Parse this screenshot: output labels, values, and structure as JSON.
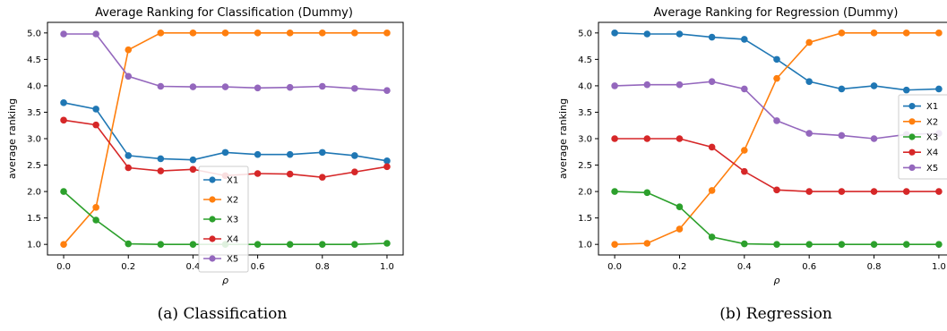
{
  "chart_data": [
    {
      "type": "line",
      "title": "Average Ranking for Classification (Dummy)",
      "xlabel": "ρ",
      "ylabel": "average ranking",
      "caption": "(a) Classification",
      "x": [
        0.0,
        0.1,
        0.2,
        0.3,
        0.4,
        0.5,
        0.6,
        0.7,
        0.8,
        0.9,
        1.0
      ],
      "xlim": [
        -0.05,
        1.05
      ],
      "ylim": [
        0.8,
        5.2
      ],
      "xticks": [
        "0.0",
        "0.2",
        "0.4",
        "0.6",
        "0.8",
        "1.0"
      ],
      "yticks": [
        "1.0",
        "1.5",
        "2.0",
        "2.5",
        "3.0",
        "3.5",
        "4.0",
        "4.5",
        "5.0"
      ],
      "legend_position": "lower-center",
      "grid": false,
      "series": [
        {
          "name": "X1",
          "color": "#1f77b4",
          "values": [
            3.68,
            3.56,
            2.68,
            2.62,
            2.6,
            2.74,
            2.7,
            2.7,
            2.74,
            2.68,
            2.58
          ]
        },
        {
          "name": "X2",
          "color": "#ff7f0e",
          "values": [
            1.0,
            1.7,
            4.68,
            5.0,
            5.0,
            5.0,
            5.0,
            5.0,
            5.0,
            5.0,
            5.0
          ]
        },
        {
          "name": "X3",
          "color": "#2ca02c",
          "values": [
            2.0,
            1.46,
            1.01,
            1.0,
            1.0,
            1.0,
            1.0,
            1.0,
            1.0,
            1.0,
            1.02
          ]
        },
        {
          "name": "X4",
          "color": "#d62728",
          "values": [
            3.35,
            3.26,
            2.45,
            2.39,
            2.42,
            2.3,
            2.34,
            2.33,
            2.27,
            2.37,
            2.47
          ]
        },
        {
          "name": "X5",
          "color": "#9467bd",
          "values": [
            4.98,
            4.98,
            4.18,
            3.99,
            3.98,
            3.98,
            3.96,
            3.97,
            3.99,
            3.95,
            3.91
          ]
        }
      ]
    },
    {
      "type": "line",
      "title": "Average Ranking for Regression (Dummy)",
      "xlabel": "ρ",
      "ylabel": "average ranking",
      "caption": "(b) Regression",
      "x": [
        0.0,
        0.1,
        0.2,
        0.3,
        0.4,
        0.5,
        0.6,
        0.7,
        0.8,
        0.9,
        1.0
      ],
      "xlim": [
        -0.05,
        1.05
      ],
      "ylim": [
        0.8,
        5.2
      ],
      "xticks": [
        "0.0",
        "0.2",
        "0.4",
        "0.6",
        "0.8",
        "1.0"
      ],
      "yticks": [
        "1.0",
        "1.5",
        "2.0",
        "2.5",
        "3.0",
        "3.5",
        "4.0",
        "4.5",
        "5.0"
      ],
      "legend_position": "right",
      "grid": false,
      "series": [
        {
          "name": "X1",
          "color": "#1f77b4",
          "values": [
            5.0,
            4.98,
            4.98,
            4.92,
            4.88,
            4.5,
            4.08,
            3.94,
            4.0,
            3.92,
            3.94
          ]
        },
        {
          "name": "X2",
          "color": "#ff7f0e",
          "values": [
            1.0,
            1.02,
            1.29,
            2.02,
            2.78,
            4.14,
            4.82,
            5.0,
            5.0,
            5.0,
            5.0
          ]
        },
        {
          "name": "X3",
          "color": "#2ca02c",
          "values": [
            2.0,
            1.98,
            1.71,
            1.14,
            1.01,
            1.0,
            1.0,
            1.0,
            1.0,
            1.0,
            1.0
          ]
        },
        {
          "name": "X4",
          "color": "#d62728",
          "values": [
            3.0,
            3.0,
            3.0,
            2.84,
            2.38,
            2.03,
            2.0,
            2.0,
            2.0,
            2.0,
            2.0
          ]
        },
        {
          "name": "X5",
          "color": "#9467bd",
          "values": [
            4.0,
            4.02,
            4.02,
            4.08,
            3.94,
            3.34,
            3.1,
            3.06,
            3.0,
            3.08,
            3.1
          ]
        }
      ]
    }
  ]
}
